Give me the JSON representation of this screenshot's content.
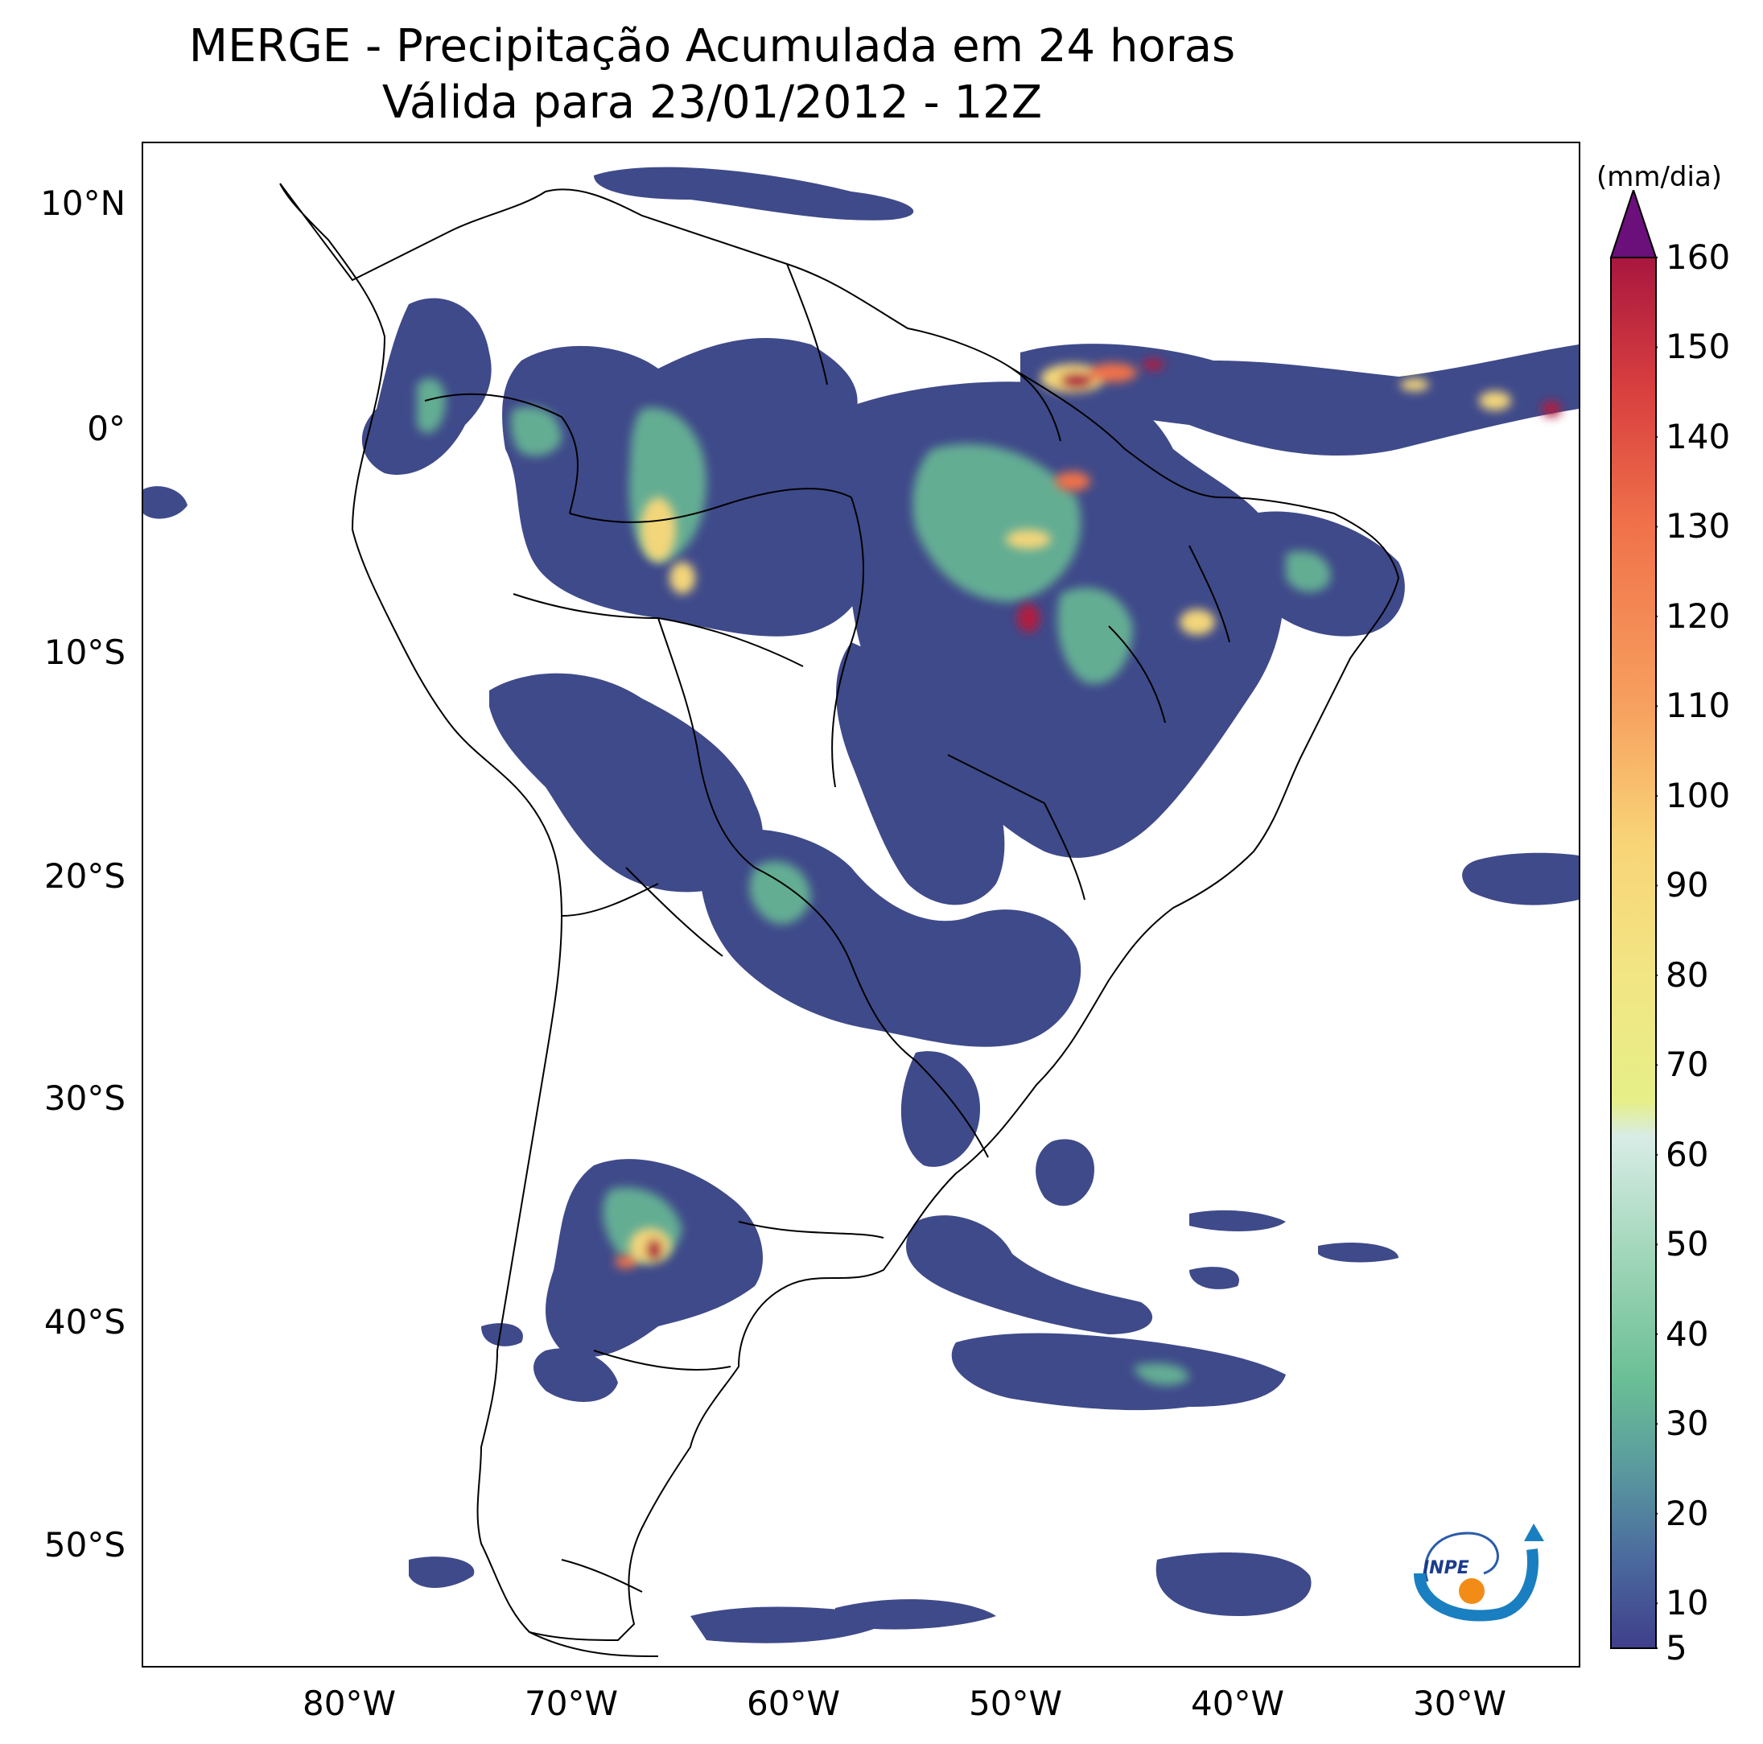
{
  "title": {
    "line1": "MERGE - Precipitação Acumulada em 24 horas",
    "line2": "Válida para 23/01/2012 - 12Z"
  },
  "map": {
    "lat_labels": [
      "10°N",
      "0°",
      "10°S",
      "20°S",
      "30°S",
      "40°S",
      "50°S"
    ],
    "lon_labels": [
      "80°W",
      "70°W",
      "60°W",
      "50°W",
      "40°W",
      "30°W"
    ],
    "extent": {
      "lon_min": -90,
      "lon_max": -25,
      "lat_min": -56,
      "lat_max": 13
    }
  },
  "colorbar": {
    "unit": "(mm/dia)",
    "tick_labels": [
      "5",
      "10",
      "20",
      "30",
      "40",
      "50",
      "60",
      "70",
      "80",
      "90",
      "100",
      "110",
      "120",
      "130",
      "140",
      "150",
      "160"
    ],
    "min": 5,
    "max": 160,
    "extend": "max",
    "stops": [
      {
        "v": 5,
        "color": "#3f3f8a"
      },
      {
        "v": 15,
        "color": "#4b6a9e"
      },
      {
        "v": 25,
        "color": "#5a9a9e"
      },
      {
        "v": 35,
        "color": "#6abf95"
      },
      {
        "v": 50,
        "color": "#a6d8bd"
      },
      {
        "v": 62,
        "color": "#d8ece6"
      },
      {
        "v": 66,
        "color": "#e6ef88"
      },
      {
        "v": 80,
        "color": "#f2e583"
      },
      {
        "v": 95,
        "color": "#f8d477"
      },
      {
        "v": 110,
        "color": "#f7a05f"
      },
      {
        "v": 130,
        "color": "#f0724a"
      },
      {
        "v": 145,
        "color": "#d9403f"
      },
      {
        "v": 160,
        "color": "#a9173f"
      }
    ],
    "overflow_color": "#6b0f7a"
  },
  "logo": {
    "text": "INPE"
  },
  "colors": {
    "coast": "#000000",
    "precip_light": "#3f4a8a",
    "precip_mid": "#6abf95",
    "precip_high": "#f3d67a",
    "precip_max": "#b11c3f"
  }
}
